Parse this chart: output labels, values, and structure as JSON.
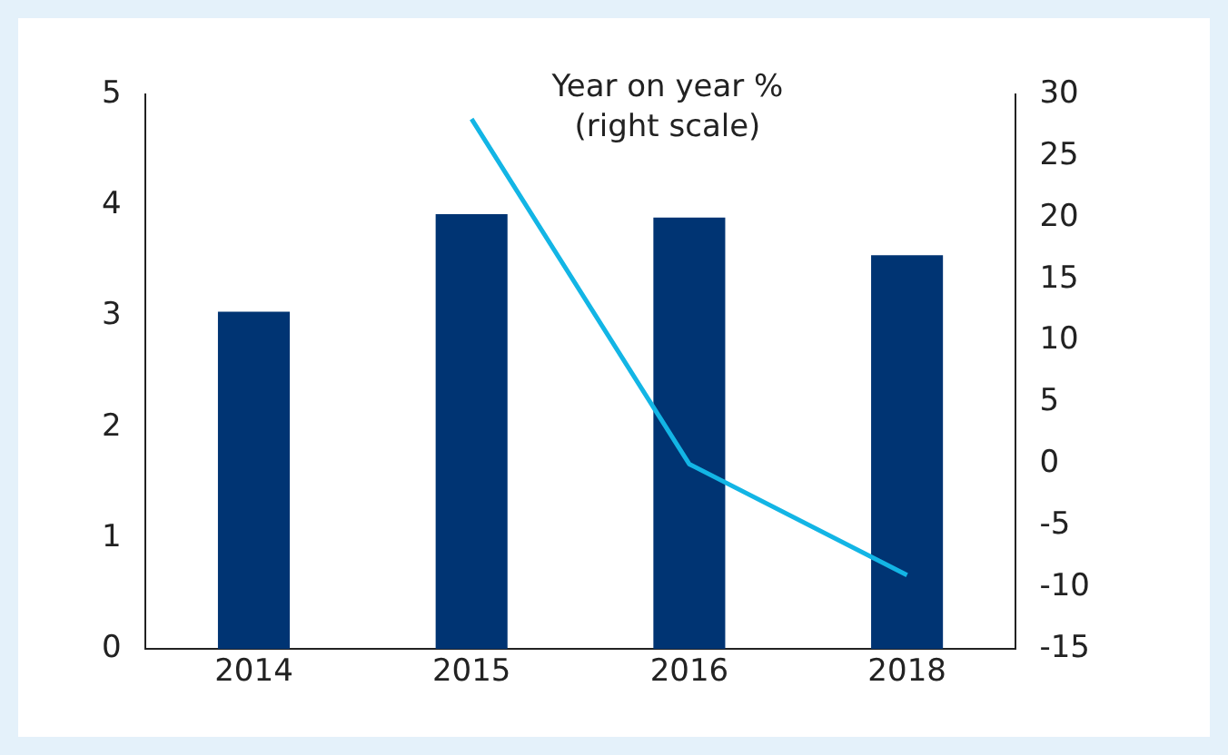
{
  "chart_data": {
    "type": "bar",
    "categories": [
      "2014",
      "2015",
      "2016",
      "2018"
    ],
    "series": [
      {
        "color": "#003473",
        "values": [
          3.04,
          3.92,
          3.89,
          3.55
        ]
      },
      {
        "type": "line",
        "axis": "y2",
        "color": "#13b5e5",
        "values": [
          null,
          28,
          0,
          -9
        ]
      }
    ],
    "ylim": [
      0,
      5
    ],
    "yticks": [
      0,
      1,
      2,
      3,
      4,
      5
    ],
    "y2lim": [
      -15,
      30
    ],
    "y2ticks": [
      -15,
      -10,
      -5,
      0,
      5,
      10,
      15,
      20,
      25,
      30
    ],
    "annotations": [
      "Year on year %",
      "(right scale)"
    ],
    "grid": false,
    "legend": false,
    "marker": "none"
  }
}
